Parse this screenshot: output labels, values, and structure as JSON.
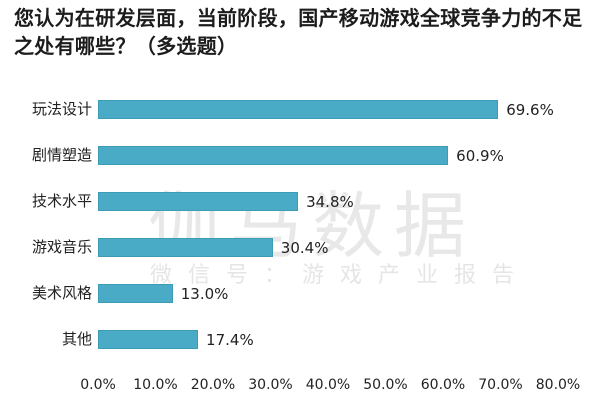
{
  "title": "您认为在研发层面，当前阶段，国产移动游戏全球竞争力的不足之处有哪些？（多选题）",
  "watermark": {
    "main": "伽马数据",
    "sub": "微信号：游戏产业报告"
  },
  "colors": {
    "bar": "#4aabc6"
  },
  "chart_data": {
    "type": "bar",
    "orientation": "horizontal",
    "title": "您认为在研发层面，当前阶段，国产移动游戏全球竞争力的不足之处有哪些？（多选题）",
    "categories": [
      "玩法设计",
      "剧情塑造",
      "技术水平",
      "游戏音乐",
      "美术风格",
      "其他"
    ],
    "values": [
      69.6,
      60.9,
      34.8,
      30.4,
      13.0,
      17.4
    ],
    "value_labels": [
      "69.6%",
      "60.9%",
      "34.8%",
      "30.4%",
      "13.0%",
      "17.4%"
    ],
    "xlabel": "",
    "ylabel": "",
    "xlim": [
      0,
      80
    ],
    "x_ticks": [
      "0.0%",
      "10.0%",
      "20.0%",
      "30.0%",
      "40.0%",
      "50.0%",
      "60.0%",
      "70.0%",
      "80.0%"
    ],
    "grid": false,
    "legend": null
  }
}
